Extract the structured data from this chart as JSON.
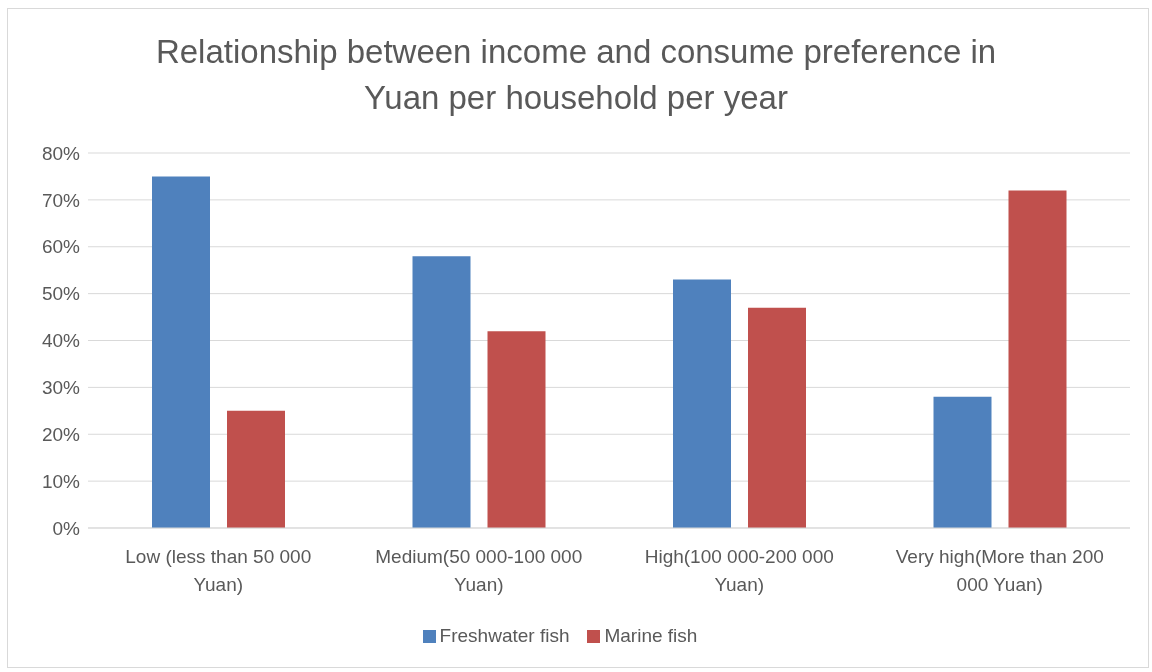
{
  "chart_data": {
    "type": "bar",
    "title": "Relationship between income and consume preference in Yuan per household per year",
    "categories": [
      "Low (less than 50 000 Yuan)",
      "Medium(50 000-100 000 Yuan)",
      "High(100 000-200 000 Yuan)",
      "Very high(More than 200 000 Yuan)"
    ],
    "series": [
      {
        "name": "Freshwater fish",
        "color": "#4f81bd",
        "values": [
          75,
          58,
          53,
          28
        ]
      },
      {
        "name": "Marine fish",
        "color": "#c0504d",
        "values": [
          25,
          42,
          47,
          72
        ]
      }
    ],
    "ylim": [
      0,
      80
    ],
    "yticks": [
      {
        "value": 0,
        "label": "0%"
      },
      {
        "value": 10,
        "label": "10%"
      },
      {
        "value": 20,
        "label": "20%"
      },
      {
        "value": 30,
        "label": "30%"
      },
      {
        "value": 40,
        "label": "40%"
      },
      {
        "value": 50,
        "label": "50%"
      },
      {
        "value": 60,
        "label": "60%"
      },
      {
        "value": 70,
        "label": "70%"
      },
      {
        "value": 80,
        "label": "80%"
      }
    ],
    "grid": "y",
    "legend": "bottom"
  }
}
